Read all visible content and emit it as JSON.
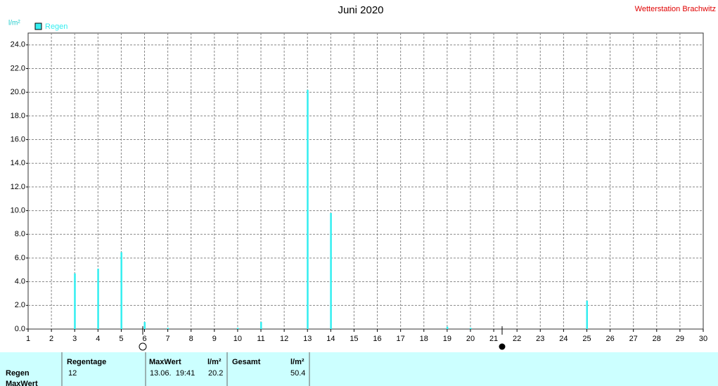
{
  "chart_data": {
    "type": "bar",
    "title": "Juni 2020",
    "subtitle": "Wetterstation Brachwitz",
    "y_label": "l/m²",
    "series": [
      {
        "name": "Regen",
        "color": "#33eef0",
        "x": [
          3,
          4,
          5,
          6,
          7,
          10,
          11,
          13,
          14,
          19,
          20,
          25
        ],
        "values": [
          4.7,
          5.1,
          6.5,
          0.6,
          0.1,
          0.1,
          0.6,
          20.2,
          9.8,
          0.2,
          0.1,
          2.4
        ]
      }
    ],
    "xlim": [
      1,
      30
    ],
    "xticks": [
      1,
      2,
      3,
      4,
      5,
      6,
      7,
      8,
      9,
      10,
      11,
      12,
      13,
      14,
      15,
      16,
      17,
      18,
      19,
      20,
      21,
      22,
      23,
      24,
      25,
      26,
      27,
      28,
      29,
      30
    ],
    "ylim": [
      0,
      25
    ],
    "yticks": [
      {
        "value": 0,
        "label": "0.0"
      },
      {
        "value": 2,
        "label": "2.0"
      },
      {
        "value": 4,
        "label": "4.0"
      },
      {
        "value": 6,
        "label": "6.0"
      },
      {
        "value": 8,
        "label": "8.0"
      },
      {
        "value": 10,
        "label": "10.0"
      },
      {
        "value": 12,
        "label": "12.0"
      },
      {
        "value": 14,
        "label": "14.0"
      },
      {
        "value": 16,
        "label": "16.0"
      },
      {
        "value": 18,
        "label": "18.0"
      },
      {
        "value": 20,
        "label": "20.0"
      },
      {
        "value": 22,
        "label": "22.0"
      },
      {
        "value": 24,
        "label": "24.0"
      }
    ],
    "grid": true
  },
  "table": {
    "columns": [
      "Regentage",
      "MaxWert",
      "l/m²",
      "Gesamt",
      "l/m²"
    ],
    "rows": [
      {
        "label": "Regen",
        "cells": [
          "12",
          "13.06.  19:41",
          "20.2",
          "50.4"
        ]
      },
      {
        "label": "MaxWert"
      }
    ]
  }
}
